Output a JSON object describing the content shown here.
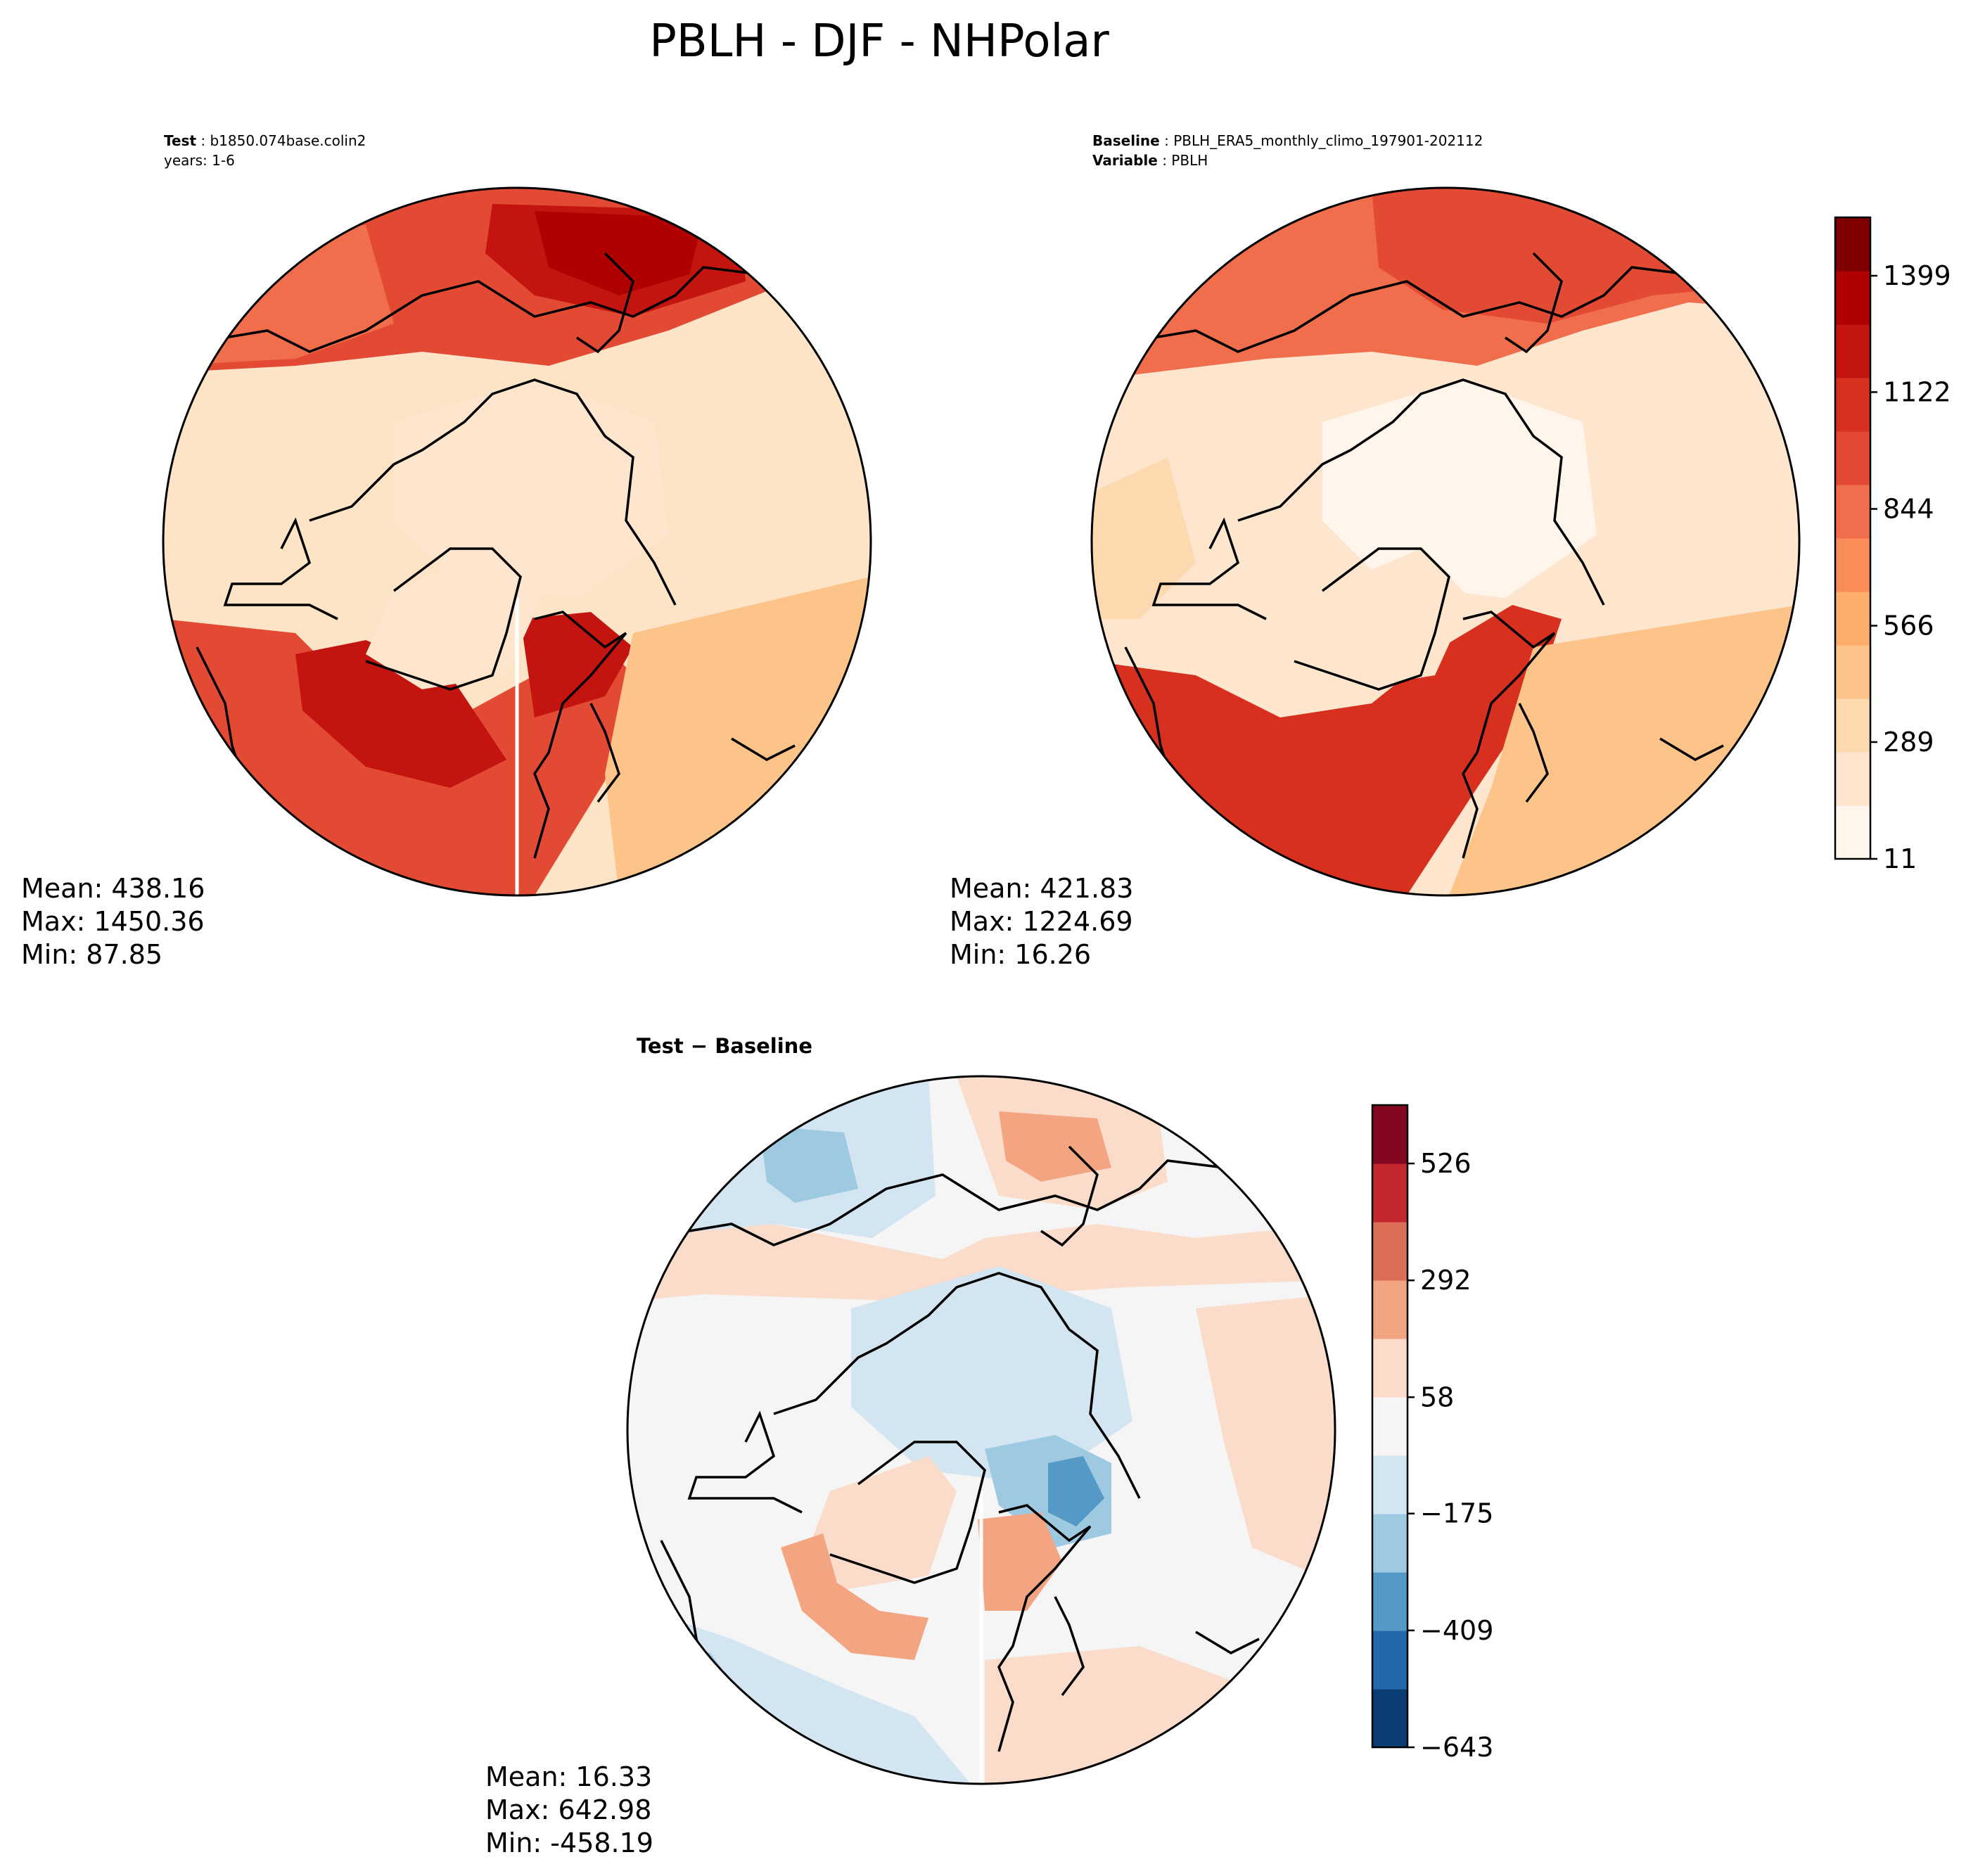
{
  "figure": {
    "title": "PBLH - DJF - NHPolar"
  },
  "chart_data": [
    {
      "type": "heatmap",
      "projection": "north-polar-stereographic",
      "header": [
        {
          "key": "Test",
          "value": "b1850.074base.colin2"
        },
        {
          "key": "",
          "value": "years: 1-6"
        }
      ],
      "stats": [
        "Mean: 438.16",
        "Max: 1450.36",
        "Min: 87.85"
      ],
      "stat_values": {
        "mean": 438.16,
        "max": 1450.36,
        "min": 87.85
      }
    },
    {
      "type": "heatmap",
      "projection": "north-polar-stereographic",
      "header": [
        {
          "key": "Baseline",
          "value": "PBLH_ERA5_monthly_climo_197901-202112"
        },
        {
          "key": "Variable",
          "value": "PBLH"
        }
      ],
      "stats": [
        "Mean: 421.83",
        "Max: 1224.69",
        "Min: 16.26"
      ],
      "stat_values": {
        "mean": 421.83,
        "max": 1224.69,
        "min": 16.26
      },
      "colorbar": {
        "range": [
          11,
          1538
        ],
        "ticks": [
          11,
          289,
          566,
          844,
          1122,
          1399
        ],
        "tick_labels": [
          "11",
          "289",
          "566",
          "844",
          "1122",
          "1399"
        ],
        "colors": [
          "#fff5eb",
          "#fee6ce",
          "#fdd9b0",
          "#fdc48a",
          "#fdae6b",
          "#fc8d59",
          "#f06e4c",
          "#e34a33",
          "#d7301f",
          "#c3140f",
          "#b00000",
          "#7f0000"
        ]
      }
    },
    {
      "type": "heatmap",
      "projection": "north-polar-stereographic",
      "title": "Test − Baseline",
      "stats": [
        "Mean: 16.33",
        "Max: 642.98",
        "Min: -458.19"
      ],
      "stat_values": {
        "mean": 16.33,
        "max": 642.98,
        "min": -458.19
      },
      "colorbar": {
        "range": [
          -643,
          643
        ],
        "ticks": [
          -643,
          -409,
          -175,
          58,
          292,
          526
        ],
        "tick_labels": [
          "−643",
          "−409",
          "−175",
          "58",
          "292",
          "526"
        ],
        "colors": [
          "#0b3c73",
          "#2269ab",
          "#5599c6",
          "#9ecae1",
          "#d2e5f1",
          "#f5f5f5",
          "#fbdbc9",
          "#f3a582",
          "#dc6e57",
          "#c1272d",
          "#82071f"
        ]
      }
    }
  ]
}
